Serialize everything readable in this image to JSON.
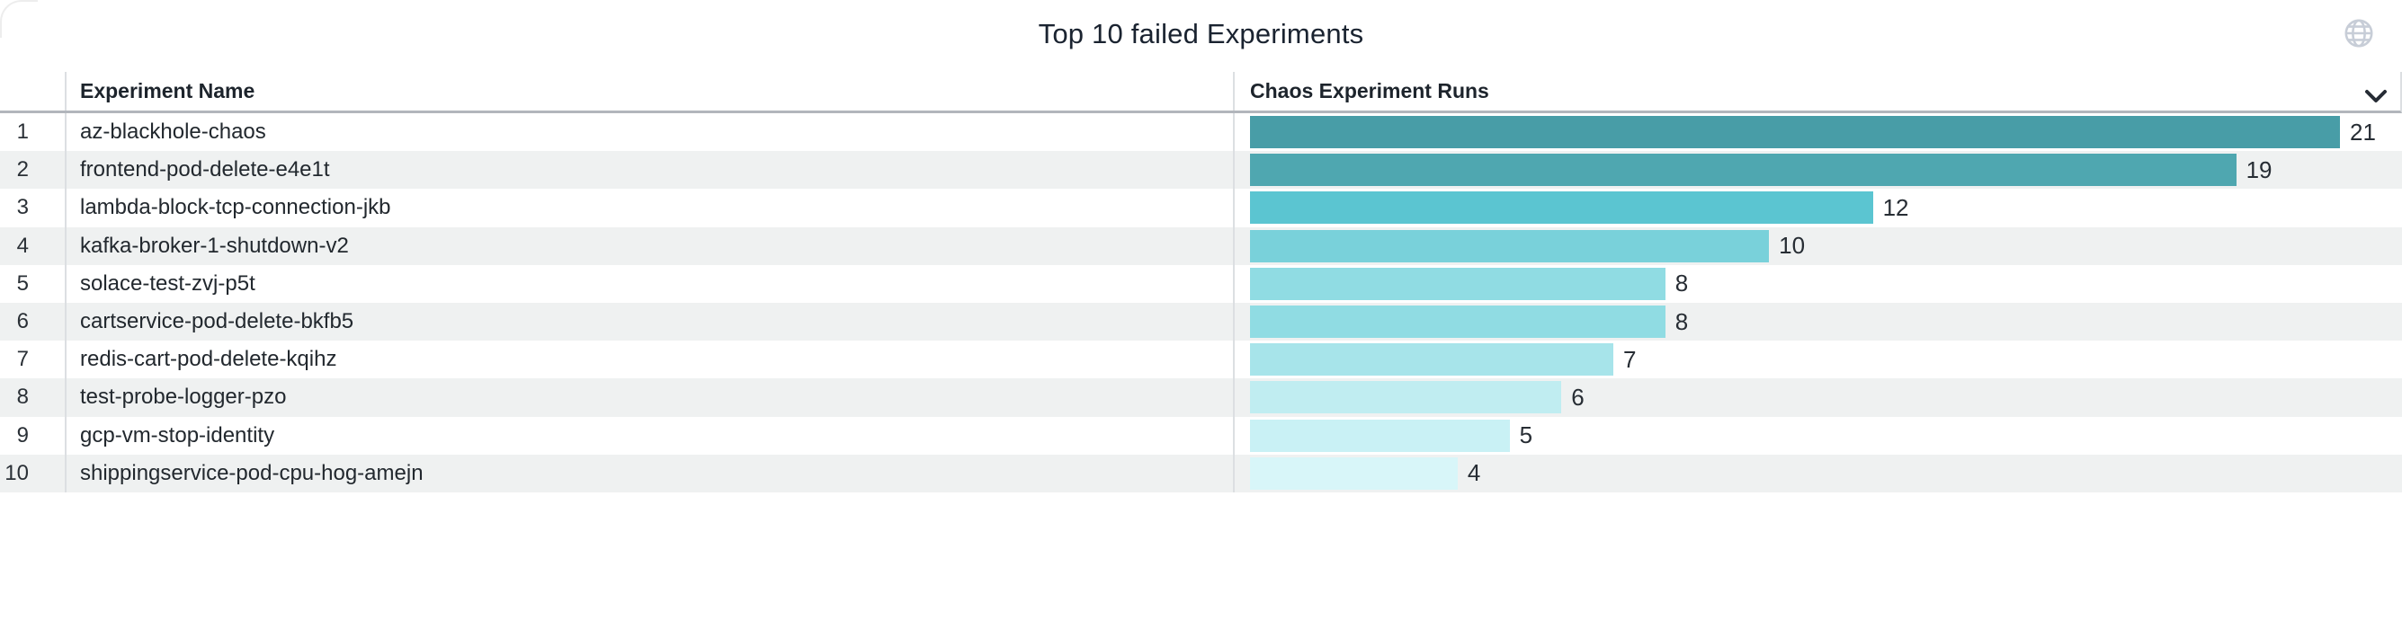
{
  "panel": {
    "title": "Top 10 failed Experiments"
  },
  "table": {
    "columns": [
      {
        "label": "Experiment Name"
      },
      {
        "label": "Chaos Experiment Runs"
      }
    ]
  },
  "chart_data": {
    "type": "bar",
    "orientation": "horizontal",
    "title": "Top 10 failed Experiments",
    "xlabel": "Chaos Experiment Runs",
    "ylabel": "Experiment Name",
    "xlim": [
      0,
      21
    ],
    "grid": false,
    "legend": "none",
    "ranks": [
      1,
      2,
      3,
      4,
      5,
      6,
      7,
      8,
      9,
      10
    ],
    "categories": [
      "az-blackhole-chaos",
      "frontend-pod-delete-e4e1t",
      "lambda-block-tcp-connection-jkb",
      "kafka-broker-1-shutdown-v2",
      "solace-test-zvj-p5t",
      "cartservice-pod-delete-bkfb5",
      "redis-cart-pod-delete-kqihz",
      "test-probe-logger-pzo",
      "gcp-vm-stop-identity",
      "shippingservice-pod-cpu-hog-amejn"
    ],
    "values": [
      21,
      19,
      12,
      10,
      8,
      8,
      7,
      6,
      5,
      4
    ],
    "bar_colors": [
      "#489da7",
      "#4fa7b0",
      "#5bc5d1",
      "#79d1da",
      "#90dce3",
      "#90dce3",
      "#a7e4ea",
      "#c0edf1",
      "#c9f1f5",
      "#d8f6f9"
    ],
    "colors": {
      "title_text": "#1a2330",
      "header_text": "#1d242c",
      "body_text": "#22282e",
      "zebra_stripe": "#eff1f1",
      "column_divider": "#dcdfe2",
      "header_underline": "#b2b6bc",
      "globe_icon": "#c7cdd7",
      "chevron_icon": "#262c35"
    }
  }
}
